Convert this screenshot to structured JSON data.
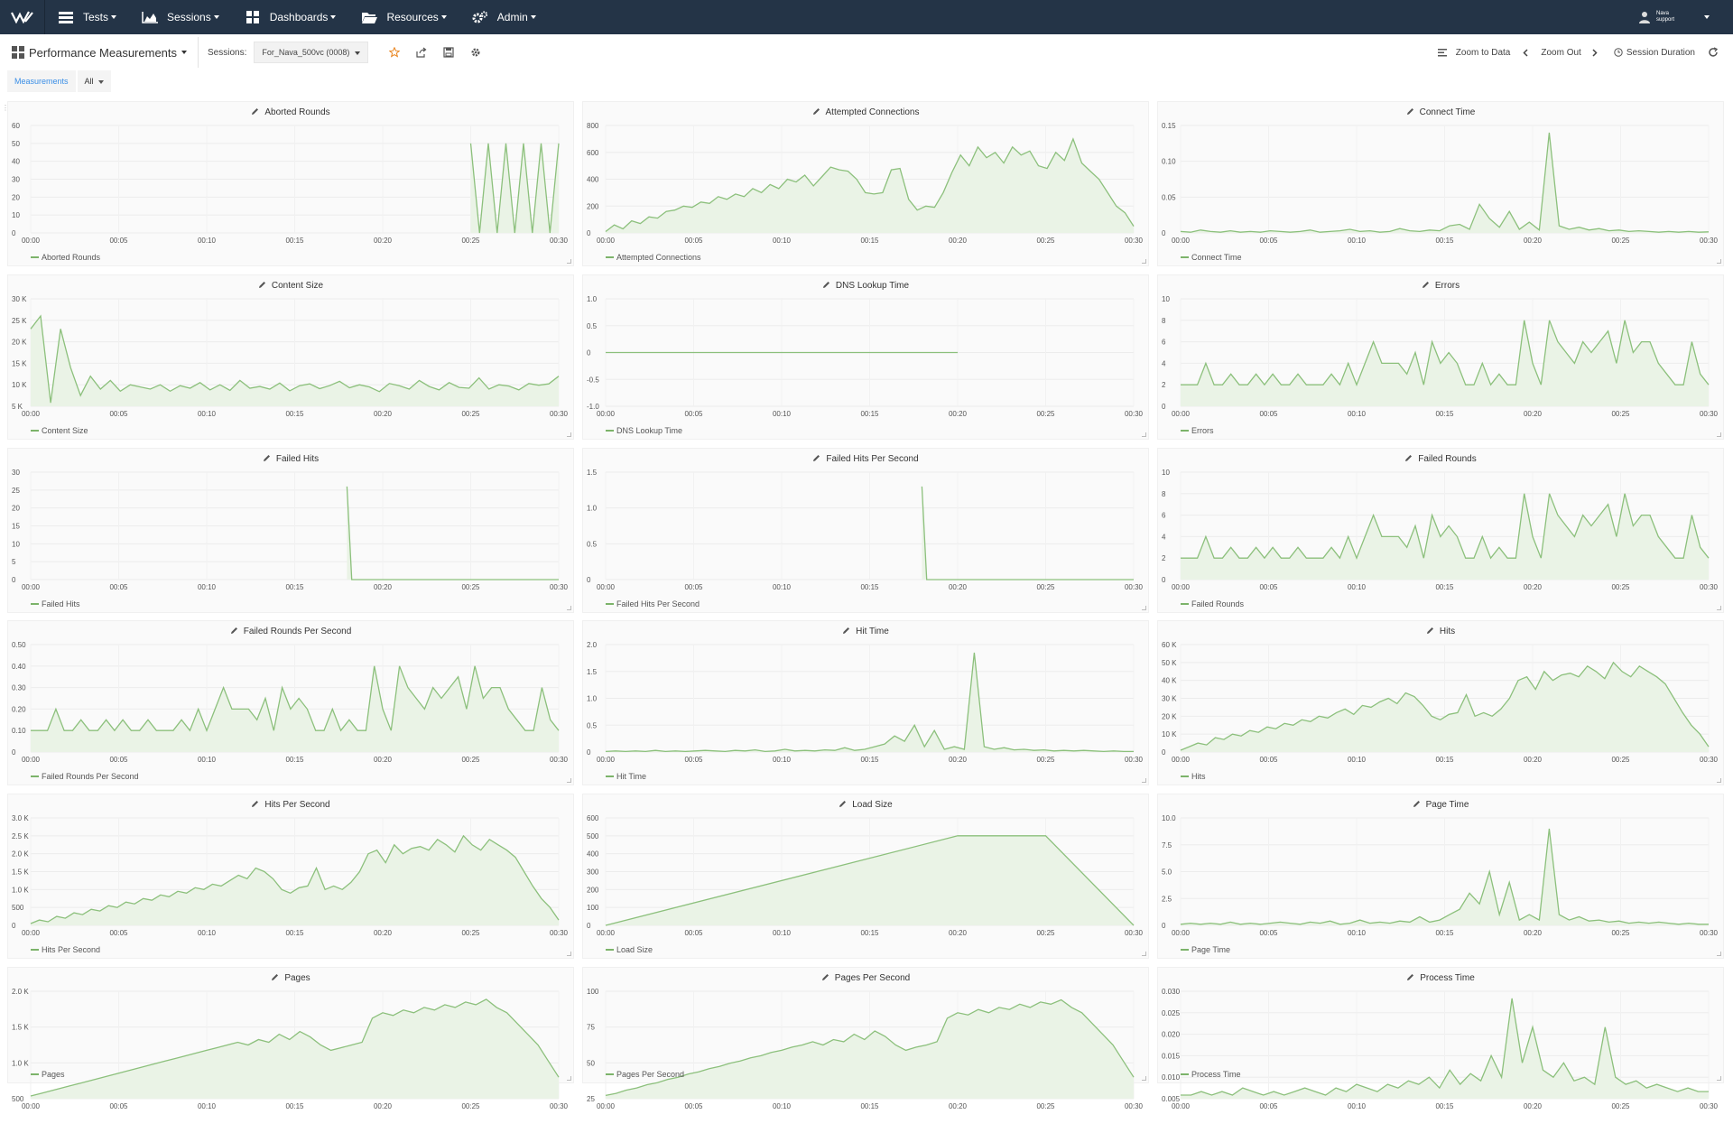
{
  "nav": {
    "items": [
      {
        "label": "Tests",
        "icon": "list-icon"
      },
      {
        "label": "Sessions",
        "icon": "area-chart-icon"
      },
      {
        "label": "Dashboards",
        "icon": "grid-icon"
      },
      {
        "label": "Resources",
        "icon": "folder-icon"
      },
      {
        "label": "Admin",
        "icon": "gears-icon"
      }
    ],
    "user_line1": "Nava",
    "user_line2": "support"
  },
  "toolbar": {
    "dashboard_title": "Performance Measurements",
    "sessions_label": "Sessions:",
    "session_value": "For_Nava_500vc (0008)",
    "zoom_to_data": "Zoom to Data",
    "zoom_out": "Zoom Out",
    "session_duration": "Session Duration"
  },
  "tags": {
    "measurements": "Measurements",
    "all": "All"
  },
  "x_ticks": [
    "00:00",
    "00:05",
    "00:10",
    "00:15",
    "00:20",
    "00:25",
    "00:30"
  ],
  "colors": {
    "line": "#8cc07c",
    "fill": "#eaf3e6",
    "nav": "#243447"
  },
  "panels": [
    {
      "title": "Aborted Rounds",
      "y_ticks": [
        "60",
        "50",
        "40",
        "30",
        "20",
        "10",
        "0"
      ],
      "ylim": [
        0,
        60
      ],
      "chart_data": {
        "type": "area",
        "x": [
          "00:25.0",
          "00:25.5",
          "00:26.0",
          "00:26.5",
          "00:27.0",
          "00:27.5",
          "00:28.0",
          "00:28.5",
          "00:29.0",
          "00:29.5",
          "00:30.0"
        ],
        "y": [
          50,
          0,
          50,
          0,
          50,
          0,
          50,
          0,
          50,
          0,
          50
        ]
      }
    },
    {
      "title": "Attempted Connections",
      "y_ticks": [
        "800",
        "600",
        "400",
        "200",
        "0"
      ],
      "ylim": [
        0,
        800
      ],
      "chart_data": {
        "type": "area",
        "y": [
          10,
          60,
          30,
          90,
          70,
          120,
          110,
          160,
          170,
          200,
          190,
          230,
          220,
          270,
          250,
          290,
          270,
          330,
          300,
          360,
          330,
          400,
          380,
          430,
          350,
          420,
          490,
          470,
          460,
          400,
          300,
          290,
          300,
          470,
          480,
          250,
          170,
          200,
          190,
          300,
          450,
          580,
          500,
          640,
          560,
          600,
          520,
          640,
          580,
          610,
          500,
          480,
          600,
          540,
          700,
          520,
          460,
          400,
          300,
          200,
          150,
          50
        ]
      }
    },
    {
      "title": "Connect Time",
      "y_ticks": [
        "0.15",
        "0.10",
        "0.05",
        "0"
      ],
      "ylim": [
        0,
        0.15
      ],
      "chart_data": {
        "type": "area",
        "y": [
          0.002,
          0.001,
          0.004,
          0.002,
          0.001,
          0.003,
          0.001,
          0.002,
          0.001,
          0.003,
          0.002,
          0.001,
          0.002,
          0.004,
          0.001,
          0.002,
          0.003,
          0.005,
          0.002,
          0.003,
          0.001,
          0.002,
          0.006,
          0.003,
          0.002,
          0.004,
          0.003,
          0.01,
          0.012,
          0.005,
          0.04,
          0.02,
          0.008,
          0.03,
          0.005,
          0.015,
          0.004,
          0.14,
          0.01,
          0.005,
          0.008,
          0.004,
          0.006,
          0.003,
          0.004,
          0.002,
          0.003,
          0.002,
          0.001,
          0.002,
          0.001,
          0.002,
          0.001,
          0.0015
        ]
      }
    },
    {
      "title": "Content Size",
      "y_ticks": [
        "30 K",
        "25 K",
        "20 K",
        "15 K",
        "10 K",
        "5 K"
      ],
      "ylim": [
        5000,
        30000
      ],
      "chart_data": {
        "type": "area",
        "y": [
          23000,
          26000,
          5800,
          23000,
          14000,
          7500,
          12000,
          9000,
          11000,
          8500,
          10000,
          9500,
          9000,
          10000,
          8500,
          9800,
          9200,
          10500,
          8800,
          10000,
          8700,
          11000,
          9200,
          9600,
          9000,
          10400,
          8600,
          9800,
          10200,
          9100,
          9800,
          10800,
          9300,
          10000,
          9500,
          8400,
          10300,
          9800,
          9000,
          11000,
          9600,
          8800,
          10500,
          9400,
          9200,
          11600,
          9000,
          10000,
          9700,
          8800,
          10300,
          9900,
          10200,
          12000
        ]
      }
    },
    {
      "title": "DNS Lookup Time",
      "y_ticks": [
        "1.0",
        "0.5",
        "0",
        "-0.5",
        "-1.0"
      ],
      "ylim": [
        -1,
        1
      ],
      "chart_data": {
        "type": "line",
        "x_range": [
          "00:00",
          "00:20"
        ],
        "y": [
          0,
          0
        ]
      }
    },
    {
      "title": "Errors",
      "y_ticks": [
        "10",
        "8",
        "6",
        "4",
        "2",
        "0"
      ],
      "ylim": [
        0,
        10
      ],
      "chart_data": {
        "type": "area",
        "y": [
          2,
          2,
          2,
          4,
          2,
          2,
          3,
          2,
          2,
          3,
          2,
          3,
          2,
          2,
          3,
          2,
          2,
          2,
          3,
          2,
          4,
          2,
          4,
          6,
          4,
          4,
          4,
          3,
          5,
          2,
          6,
          4,
          5,
          4,
          2,
          2,
          4,
          2,
          3,
          2,
          2,
          8,
          4,
          2,
          8,
          6,
          5,
          4,
          6,
          5,
          6,
          7,
          4,
          8,
          5,
          6,
          6,
          4,
          3,
          2,
          2,
          6,
          3,
          2
        ]
      }
    },
    {
      "title": "Failed Hits",
      "y_ticks": [
        "30",
        "25",
        "20",
        "15",
        "10",
        "5",
        "0"
      ],
      "ylim": [
        0,
        30
      ],
      "chart_data": {
        "type": "area",
        "spike": {
          "x": "00:18",
          "y": 26
        },
        "y_after": 0
      }
    },
    {
      "title": "Failed Hits Per Second",
      "y_ticks": [
        "1.5",
        "1.0",
        "0.5",
        "0"
      ],
      "ylim": [
        0,
        1.5
      ],
      "chart_data": {
        "type": "area",
        "spike": {
          "x": "00:18",
          "y": 1.3
        },
        "y_after": 0
      }
    },
    {
      "title": "Failed Rounds",
      "y_ticks": [
        "10",
        "8",
        "6",
        "4",
        "2",
        "0"
      ],
      "ylim": [
        0,
        10
      ],
      "chart_data": {
        "type": "area",
        "y": [
          2,
          2,
          2,
          4,
          2,
          2,
          3,
          2,
          2,
          3,
          2,
          3,
          2,
          2,
          3,
          2,
          2,
          2,
          3,
          2,
          4,
          2,
          4,
          6,
          4,
          4,
          4,
          3,
          5,
          2,
          6,
          4,
          5,
          4,
          2,
          2,
          4,
          2,
          3,
          2,
          2,
          8,
          4,
          2,
          8,
          6,
          5,
          4,
          6,
          5,
          6,
          7,
          4,
          8,
          5,
          6,
          6,
          4,
          3,
          2,
          2,
          6,
          3,
          2
        ]
      }
    },
    {
      "title": "Failed Rounds Per Second",
      "y_ticks": [
        "0.50",
        "0.40",
        "0.30",
        "0.20",
        "0.10",
        "0"
      ],
      "ylim": [
        0,
        0.5
      ],
      "chart_data": {
        "type": "area",
        "y": [
          0.1,
          0.1,
          0.1,
          0.2,
          0.1,
          0.1,
          0.15,
          0.1,
          0.1,
          0.15,
          0.1,
          0.15,
          0.1,
          0.1,
          0.15,
          0.1,
          0.1,
          0.1,
          0.15,
          0.1,
          0.2,
          0.1,
          0.2,
          0.3,
          0.2,
          0.2,
          0.2,
          0.15,
          0.25,
          0.1,
          0.3,
          0.2,
          0.25,
          0.2,
          0.1,
          0.1,
          0.2,
          0.1,
          0.15,
          0.1,
          0.1,
          0.4,
          0.2,
          0.1,
          0.4,
          0.3,
          0.25,
          0.2,
          0.3,
          0.25,
          0.3,
          0.35,
          0.2,
          0.4,
          0.25,
          0.3,
          0.3,
          0.2,
          0.15,
          0.1,
          0.1,
          0.3,
          0.15,
          0.1
        ]
      }
    },
    {
      "title": "Hit Time",
      "y_ticks": [
        "2.0",
        "1.5",
        "1.0",
        "0.5",
        "0"
      ],
      "ylim": [
        0,
        2
      ],
      "chart_data": {
        "type": "area",
        "y": [
          0.01,
          0.02,
          0.01,
          0.02,
          0.01,
          0.03,
          0.01,
          0.02,
          0.01,
          0.02,
          0.03,
          0.02,
          0.01,
          0.03,
          0.02,
          0.04,
          0.01,
          0.02,
          0.05,
          0.02,
          0.03,
          0.02,
          0.04,
          0.03,
          0.08,
          0.03,
          0.05,
          0.1,
          0.15,
          0.3,
          0.2,
          0.5,
          0.1,
          0.4,
          0.05,
          0.1,
          0.05,
          1.85,
          0.1,
          0.05,
          0.08,
          0.04,
          0.05,
          0.03,
          0.04,
          0.02,
          0.03,
          0.02,
          0.03,
          0.02,
          0.01,
          0.02,
          0.01,
          0.01
        ]
      }
    },
    {
      "title": "Hits",
      "y_ticks": [
        "60 K",
        "50 K",
        "40 K",
        "30 K",
        "20 K",
        "10 K",
        "0"
      ],
      "ylim": [
        0,
        60000
      ],
      "chart_data": {
        "type": "area",
        "y": [
          1000,
          3000,
          5000,
          4000,
          8000,
          7000,
          10000,
          9000,
          12000,
          11000,
          14000,
          13000,
          16000,
          15000,
          18000,
          17000,
          20000,
          19000,
          22000,
          24000,
          21000,
          26000,
          25000,
          28000,
          30000,
          27000,
          33000,
          31000,
          26000,
          20000,
          18000,
          21000,
          22000,
          32000,
          20000,
          22000,
          20000,
          24000,
          30000,
          40000,
          42000,
          35000,
          45000,
          40000,
          43000,
          44000,
          42000,
          48000,
          45000,
          41000,
          50000,
          45000,
          42000,
          48000,
          45000,
          42000,
          38000,
          30000,
          22000,
          15000,
          10000,
          3000
        ]
      }
    },
    {
      "title": "Hits Per Second",
      "y_ticks": [
        "3.0 K",
        "2.5 K",
        "2.0 K",
        "1.5 K",
        "1.0 K",
        "500",
        "0"
      ],
      "ylim": [
        0,
        3000
      ],
      "chart_data": {
        "type": "area",
        "y": [
          50,
          150,
          100,
          250,
          200,
          350,
          300,
          450,
          400,
          550,
          500,
          650,
          600,
          750,
          700,
          850,
          800,
          950,
          900,
          1050,
          1000,
          1150,
          1100,
          1250,
          1400,
          1300,
          1600,
          1500,
          1300,
          1000,
          900,
          1050,
          1100,
          1600,
          1000,
          1100,
          1000,
          1200,
          1500,
          2000,
          2100,
          1750,
          2250,
          2000,
          2150,
          2200,
          2100,
          2400,
          2250,
          2050,
          2500,
          2250,
          2100,
          2400,
          2250,
          2100,
          1900,
          1500,
          1100,
          750,
          500,
          150
        ]
      }
    },
    {
      "title": "Load Size",
      "y_ticks": [
        "600",
        "500",
        "400",
        "300",
        "200",
        "100",
        "0"
      ],
      "ylim": [
        0,
        600
      ],
      "chart_data": {
        "type": "area",
        "x": [
          "00:00",
          "00:20",
          "00:25",
          "00:30"
        ],
        "y": [
          0,
          500,
          500,
          0
        ]
      }
    },
    {
      "title": "Page Time",
      "y_ticks": [
        "10.0",
        "7.5",
        "5.0",
        "2.5",
        "0"
      ],
      "ylim": [
        0,
        10
      ],
      "chart_data": {
        "type": "area",
        "y": [
          0.1,
          0.2,
          0.1,
          0.2,
          0.1,
          0.3,
          0.1,
          0.2,
          0.1,
          0.2,
          0.3,
          0.2,
          0.1,
          0.3,
          0.2,
          0.4,
          0.1,
          0.2,
          0.5,
          0.2,
          0.3,
          0.2,
          0.4,
          0.3,
          0.8,
          0.3,
          0.5,
          1.0,
          1.5,
          3.0,
          2.0,
          5.0,
          1.0,
          4.0,
          0.5,
          1.0,
          0.5,
          9.0,
          1.0,
          0.5,
          0.8,
          0.4,
          0.5,
          0.3,
          0.4,
          0.2,
          0.3,
          0.2,
          0.3,
          0.2,
          0.1,
          0.2,
          0.1,
          0.1
        ]
      }
    },
    {
      "title": "Pages",
      "y_ticks": [
        "2.0 K",
        "1.5 K",
        "1.0 K",
        "500"
      ],
      "ylim": [
        0,
        2000
      ],
      "chart_data": {
        "type": "area",
        "y": [
          50,
          100,
          150,
          200,
          250,
          300,
          350,
          400,
          450,
          500,
          550,
          600,
          650,
          700,
          750,
          800,
          850,
          900,
          950,
          1000,
          1050,
          1000,
          1100,
          1050,
          1200,
          1100,
          1250,
          1150,
          1000,
          900,
          950,
          1000,
          1050,
          1500,
          1600,
          1550,
          1650,
          1600,
          1700,
          1650,
          1750,
          1700,
          1800,
          1750,
          1850,
          1700,
          1600,
          1400,
          1200,
          1000,
          700,
          400
        ]
      }
    },
    {
      "title": "Pages Per Second",
      "y_ticks": [
        "100",
        "75",
        "50",
        "25"
      ],
      "ylim": [
        0,
        100
      ],
      "chart_data": {
        "type": "area",
        "y": [
          3,
          5,
          8,
          10,
          13,
          15,
          18,
          20,
          23,
          25,
          28,
          30,
          33,
          35,
          38,
          40,
          43,
          45,
          48,
          50,
          53,
          50,
          55,
          53,
          60,
          55,
          63,
          58,
          50,
          45,
          48,
          50,
          53,
          75,
          80,
          78,
          83,
          80,
          85,
          83,
          88,
          85,
          90,
          88,
          92,
          85,
          80,
          70,
          60,
          50,
          35,
          20
        ]
      }
    },
    {
      "title": "Process Time",
      "y_ticks": [
        "0.030",
        "0.025",
        "0.020",
        "0.015",
        "0.010",
        "0.005"
      ],
      "ylim": [
        0,
        0.03
      ],
      "chart_data": {
        "type": "area",
        "y": [
          0.001,
          0.001,
          0.002,
          0.001,
          0.002,
          0.001,
          0.003,
          0.002,
          0.001,
          0.002,
          0.001,
          0.002,
          0.003,
          0.002,
          0.001,
          0.003,
          0.002,
          0.004,
          0.003,
          0.002,
          0.004,
          0.003,
          0.005,
          0.004,
          0.006,
          0.003,
          0.008,
          0.004,
          0.007,
          0.005,
          0.012,
          0.006,
          0.028,
          0.01,
          0.02,
          0.008,
          0.006,
          0.01,
          0.005,
          0.006,
          0.004,
          0.02,
          0.006,
          0.004,
          0.005,
          0.003,
          0.004,
          0.003,
          0.002,
          0.003,
          0.002,
          0.002
        ]
      }
    }
  ]
}
